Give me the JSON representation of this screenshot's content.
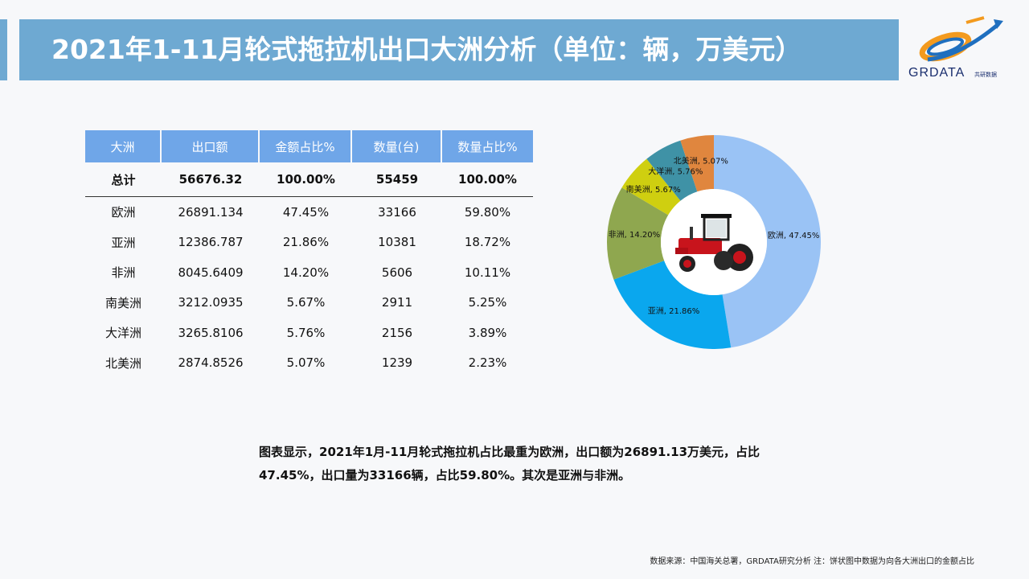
{
  "header": {
    "title": "2021年1-11月轮式拖拉机出口大洲分析（单位：辆，万美元）"
  },
  "logo": {
    "brand": "GRDATA",
    "sub": "共研数据",
    "colors": {
      "orange": "#f39a1e",
      "blue": "#1f6fbf",
      "navy": "#1a2e6e"
    }
  },
  "table": {
    "headers": [
      "大洲",
      "出口额",
      "金额占比%",
      "数量(台)",
      "数量占比%"
    ],
    "total": [
      "总计",
      "56676.32",
      "100.00%",
      "55459",
      "100.00%"
    ],
    "rows": [
      [
        "欧洲",
        "26891.134",
        "47.45%",
        "33166",
        "59.80%"
      ],
      [
        "亚洲",
        "12386.787",
        "21.86%",
        "10381",
        "18.72%"
      ],
      [
        "非洲",
        "8045.6409",
        "14.20%",
        "5606",
        "10.11%"
      ],
      [
        "南美洲",
        "3212.0935",
        "5.67%",
        "2911",
        "5.25%"
      ],
      [
        "大洋洲",
        "3265.8106",
        "5.76%",
        "2156",
        "3.89%"
      ],
      [
        "北美洲",
        "2874.8526",
        "5.07%",
        "1239",
        "2.23%"
      ]
    ]
  },
  "chart_data": {
    "type": "pie",
    "donut": true,
    "center_image": "red-tractor",
    "slices": [
      {
        "name": "欧洲",
        "value": 47.45,
        "label": "欧洲, 47.45%",
        "color": "#9ac3f5"
      },
      {
        "name": "亚洲",
        "value": 21.86,
        "label": "亚洲, 21.86%",
        "color": "#0aa7ee"
      },
      {
        "name": "非洲",
        "value": 14.2,
        "label": "非洲, 14.20%",
        "color": "#8fa74f"
      },
      {
        "name": "南美洲",
        "value": 5.67,
        "label": "南美洲, 5.67%",
        "color": "#cfcf10"
      },
      {
        "name": "大洋洲",
        "value": 5.76,
        "label": "大洋洲, 5.76%",
        "color": "#3f92a6"
      },
      {
        "name": "北美洲",
        "value": 5.07,
        "label": "北美洲, 5.07%",
        "color": "#e0863e"
      }
    ]
  },
  "summary": {
    "text": "图表显示，2021年1月-11月轮式拖拉机占比最重为欧洲，出口额为26891.13万美元，占比47.45%，出口量为33166辆，占比59.80%。其次是亚洲与非洲。"
  },
  "footer": {
    "source": "数据来源：中国海关总署，GRDATA研究分析  注：饼状图中数据为向各大洲出口的金额占比"
  }
}
